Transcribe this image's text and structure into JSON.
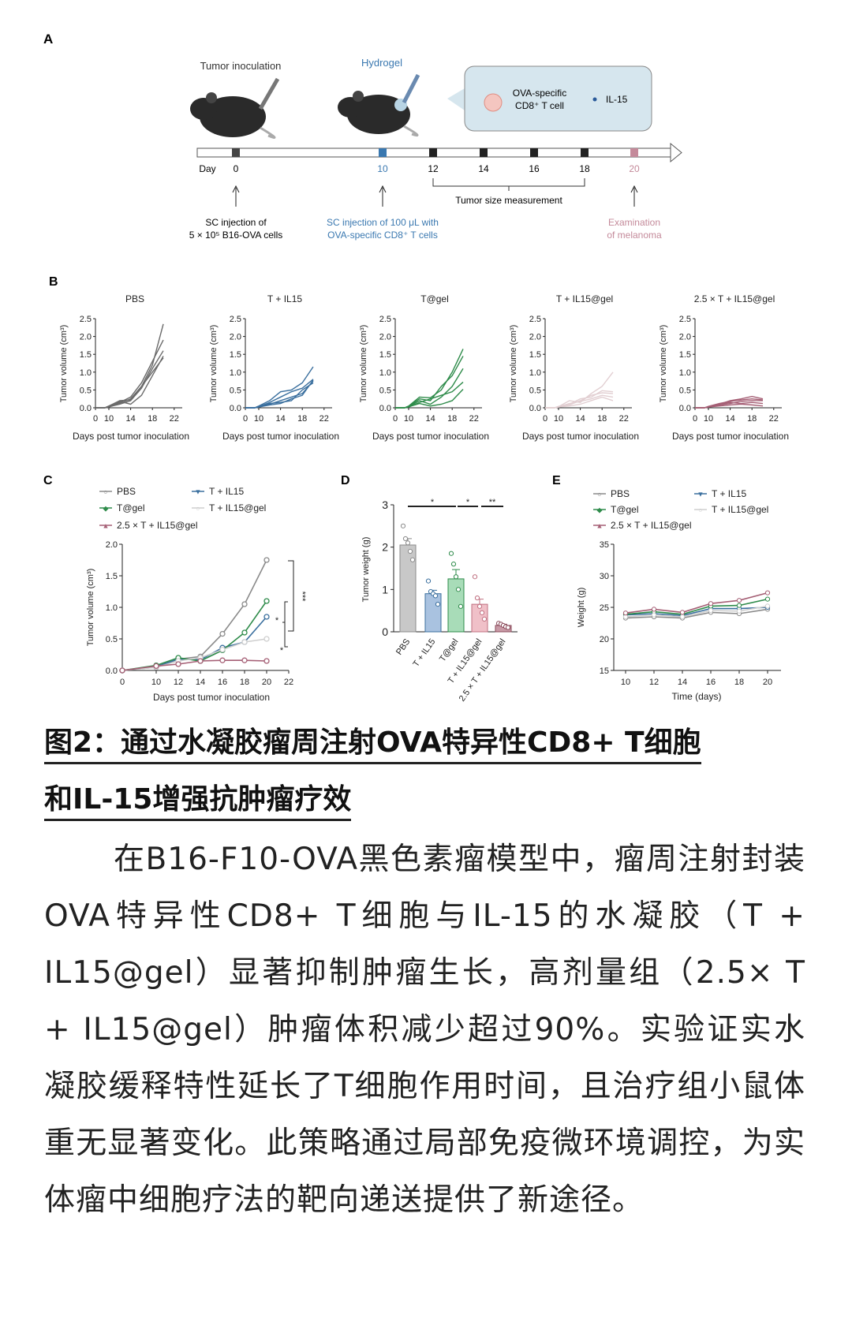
{
  "panel_a": {
    "label": "A",
    "tumor_inoculation": "Tumor inoculation",
    "hydrogel": "Hydrogel",
    "callout_cell": [
      "OVA-specific",
      "CD8⁺ T cell"
    ],
    "callout_il15": "IL-15",
    "day_label": "Day",
    "days": [
      "0",
      "10",
      "12",
      "14",
      "16",
      "18",
      "20"
    ],
    "measurement": "Tumor size measurement",
    "note_day0": [
      "SC injection of",
      "5 × 10⁵ B16-OVA cells"
    ],
    "note_day10": [
      "SC injection of 100 μL with",
      "OVA-specific CD8⁺ T cells"
    ],
    "note_day20": [
      "Examination",
      "of melanoma"
    ],
    "colors": {
      "day0": "#444444",
      "day10": "#3a78b0",
      "measure": "#222222",
      "day20": "#c48a9a",
      "callout_bg": "#d6e6ee"
    }
  },
  "chart_data": [
    {
      "panel": "B",
      "type": "line",
      "xlabel": "Days post tumor inoculation",
      "ylabel": "Tumor volume (cm³)",
      "xticks": [
        "0",
        "10",
        "14",
        "18",
        "22"
      ],
      "yticks": [
        "0.0",
        "0.5",
        "1.0",
        "1.5",
        "2.0",
        "2.5"
      ],
      "ylim": [
        0,
        2.5
      ],
      "x": [
        0,
        7,
        10,
        12,
        14,
        16,
        18,
        20
      ],
      "subplots": [
        {
          "title": "PBS",
          "color": "#6a6a6a",
          "series": [
            [
              0,
              0,
              0.05,
              0.2,
              0.22,
              0.6,
              1.2,
              2.35
            ],
            [
              0,
              0,
              0.04,
              0.15,
              0.3,
              0.7,
              1.3,
              1.9
            ],
            [
              0,
              0,
              0.03,
              0.1,
              0.2,
              0.55,
              1.1,
              1.6
            ],
            [
              0,
              0,
              0.05,
              0.18,
              0.1,
              0.35,
              0.9,
              1.45
            ],
            [
              0,
              0,
              0.02,
              0.12,
              0.25,
              0.6,
              1.0,
              1.4
            ]
          ]
        },
        {
          "title": "T + IL15",
          "color": "#3a6f9e",
          "series": [
            [
              0,
              0,
              0.05,
              0.2,
              0.45,
              0.5,
              0.7,
              1.15
            ],
            [
              0,
              0,
              0.03,
              0.15,
              0.3,
              0.45,
              0.55,
              0.8
            ],
            [
              0,
              0,
              0.02,
              0.1,
              0.2,
              0.3,
              0.4,
              0.75
            ],
            [
              0,
              0,
              0.04,
              0.12,
              0.15,
              0.2,
              0.5,
              0.7
            ],
            [
              0,
              0,
              0.02,
              0.08,
              0.12,
              0.25,
              0.35,
              0.78
            ]
          ]
        },
        {
          "title": "T@gel",
          "color": "#2e8b4a",
          "series": [
            [
              0,
              0,
              0.05,
              0.3,
              0.28,
              0.5,
              1.0,
              1.65
            ],
            [
              0,
              0,
              0.04,
              0.25,
              0.2,
              0.6,
              0.9,
              1.45
            ],
            [
              0,
              0,
              0.03,
              0.2,
              0.1,
              0.3,
              0.6,
              1.1
            ],
            [
              0,
              0,
              0.02,
              0.15,
              0.25,
              0.35,
              0.45,
              0.72
            ],
            [
              0,
              0,
              0.03,
              0.12,
              0.05,
              0.1,
              0.2,
              0.52
            ]
          ]
        },
        {
          "title": "T + IL15@gel",
          "color": "#e2cfd2",
          "series": [
            [
              0,
              0,
              0.03,
              0.2,
              0.15,
              0.4,
              0.6,
              1.0
            ],
            [
              0,
              0,
              0.04,
              0.1,
              0.25,
              0.3,
              0.48,
              0.45
            ],
            [
              0,
              0,
              0.02,
              0.08,
              0.2,
              0.35,
              0.42,
              0.4
            ],
            [
              0,
              0,
              0.03,
              0.12,
              0.18,
              0.25,
              0.35,
              0.3
            ],
            [
              0,
              0,
              0.02,
              0.05,
              0.1,
              0.2,
              0.3,
              0.2
            ]
          ]
        },
        {
          "title": "2.5 × T + IL15@gel",
          "color": "#a55f75",
          "series": [
            [
              0,
              0,
              0.03,
              0.1,
              0.2,
              0.25,
              0.32,
              0.25
            ],
            [
              0,
              0,
              0.04,
              0.12,
              0.18,
              0.22,
              0.25,
              0.22
            ],
            [
              0,
              0,
              0.02,
              0.08,
              0.12,
              0.18,
              0.2,
              0.2
            ],
            [
              0,
              0,
              0.03,
              0.1,
              0.15,
              0.12,
              0.15,
              0.12
            ],
            [
              0,
              0,
              0.02,
              0.05,
              0.08,
              0.1,
              0.08,
              0.05
            ]
          ]
        }
      ]
    },
    {
      "panel": "C",
      "type": "line",
      "xlabel": "Days post tumor inoculation",
      "ylabel": "Tumor volume (cm³)",
      "xticks": [
        "0",
        "10",
        "12",
        "14",
        "16",
        "18",
        "20",
        "22"
      ],
      "yticks": [
        "0.0",
        "0.5",
        "1.0",
        "1.5",
        "2.0"
      ],
      "ylim": [
        0,
        2.0
      ],
      "x": [
        0,
        10,
        12,
        14,
        16,
        18,
        20
      ],
      "legend": "top",
      "series": [
        {
          "name": "PBS",
          "color": "#8a8a8a",
          "marker": "○",
          "values": [
            0,
            0.05,
            0.18,
            0.22,
            0.58,
            1.05,
            1.75
          ]
        },
        {
          "name": "T + IL15",
          "color": "#3a6f9e",
          "marker": "▼",
          "values": [
            0,
            0.06,
            0.18,
            0.17,
            0.36,
            0.45,
            0.85
          ]
        },
        {
          "name": "T@gel",
          "color": "#2e8b4a",
          "marker": "◆",
          "values": [
            0,
            0.08,
            0.2,
            0.15,
            0.32,
            0.6,
            1.1
          ]
        },
        {
          "name": "T + IL15@gel",
          "color": "#cfcfcf",
          "marker": "○",
          "values": [
            0,
            0.05,
            0.15,
            0.2,
            0.33,
            0.45,
            0.5
          ]
        },
        {
          "name": "2.5 × T + IL15@gel",
          "color": "#a55f75",
          "marker": "▲",
          "values": [
            0,
            0.07,
            0.1,
            0.15,
            0.16,
            0.16,
            0.15
          ]
        }
      ],
      "significance": [
        "***",
        "*",
        "*"
      ]
    },
    {
      "panel": "D",
      "type": "bar",
      "ylabel": "Tumor weight (g)",
      "yticks": [
        "0",
        "1",
        "2",
        "3"
      ],
      "ylim": [
        0,
        3
      ],
      "categories": [
        "PBS",
        "T + IL15",
        "T@gel",
        "T + IL15@gel",
        "2.5 × T + IL15@gel"
      ],
      "values": [
        2.05,
        0.9,
        1.25,
        0.65,
        0.15
      ],
      "errors": [
        0.15,
        0.08,
        0.22,
        0.12,
        0.03
      ],
      "colors": [
        "#c8c8c8",
        "#a9c2e0",
        "#a8dcb8",
        "#f0c0c8",
        "#c89aa6"
      ],
      "edge_colors": [
        "#8a8a8a",
        "#3a6f9e",
        "#2e8b4a",
        "#c07080",
        "#8a4a5a"
      ],
      "points": [
        [
          2.5,
          2.2,
          2.1,
          1.9,
          1.7
        ],
        [
          1.2,
          0.95,
          0.9,
          0.85,
          0.65
        ],
        [
          1.85,
          1.6,
          1.3,
          1.0,
          0.6
        ],
        [
          1.3,
          0.8,
          0.6,
          0.45,
          0.3
        ],
        [
          0.2,
          0.18,
          0.15,
          0.12,
          0.1
        ]
      ],
      "significance": [
        "*",
        "*",
        "**"
      ]
    },
    {
      "panel": "E",
      "type": "line",
      "xlabel": "Time (days)",
      "ylabel": "Weight (g)",
      "xticks": [
        "10",
        "12",
        "14",
        "16",
        "18",
        "20"
      ],
      "yticks": [
        "15",
        "20",
        "25",
        "30",
        "35"
      ],
      "ylim": [
        15,
        35
      ],
      "x": [
        10,
        12,
        14,
        16,
        18,
        20
      ],
      "legend": "top",
      "series": [
        {
          "name": "PBS",
          "color": "#8a8a8a",
          "marker": "○",
          "values": [
            23.3,
            23.5,
            23.3,
            24.2,
            24.0,
            24.7
          ]
        },
        {
          "name": "T + IL15",
          "color": "#3a6f9e",
          "marker": "▼",
          "values": [
            23.8,
            24.0,
            23.7,
            24.8,
            24.8,
            25.0
          ]
        },
        {
          "name": "T@gel",
          "color": "#2e8b4a",
          "marker": "◆",
          "values": [
            23.9,
            24.3,
            23.9,
            25.2,
            25.3,
            26.3
          ]
        },
        {
          "name": "T + IL15@gel",
          "color": "#cfcfcf",
          "marker": "○",
          "values": [
            23.5,
            23.8,
            23.5,
            24.5,
            24.4,
            25.2
          ]
        },
        {
          "name": "2.5 × T + IL15@gel",
          "color": "#a55f75",
          "marker": "▲",
          "values": [
            24.1,
            24.7,
            24.2,
            25.6,
            26.1,
            27.3
          ]
        }
      ]
    }
  ],
  "caption": {
    "title_line1": "图2：通过水凝胶瘤周注射OVA特异性CD8+ T细胞",
    "title_line2": "和IL-15增强抗肿瘤疗效",
    "body": "在B16-F10-OVA黑色素瘤模型中，瘤周注射封装OVA特异性CD8+ T细胞与IL-15的水凝胶（T + IL15@gel）显著抑制肿瘤生长，高剂量组（2.5× T + IL15@gel）肿瘤体积减少超过90%。实验证实水凝胶缓释特性延长了T细胞作用时间，且治疗组小鼠体重无显著变化。此策略通过局部免疫微环境调控，为实体瘤中细胞疗法的靶向递送提供了新途径。"
  }
}
